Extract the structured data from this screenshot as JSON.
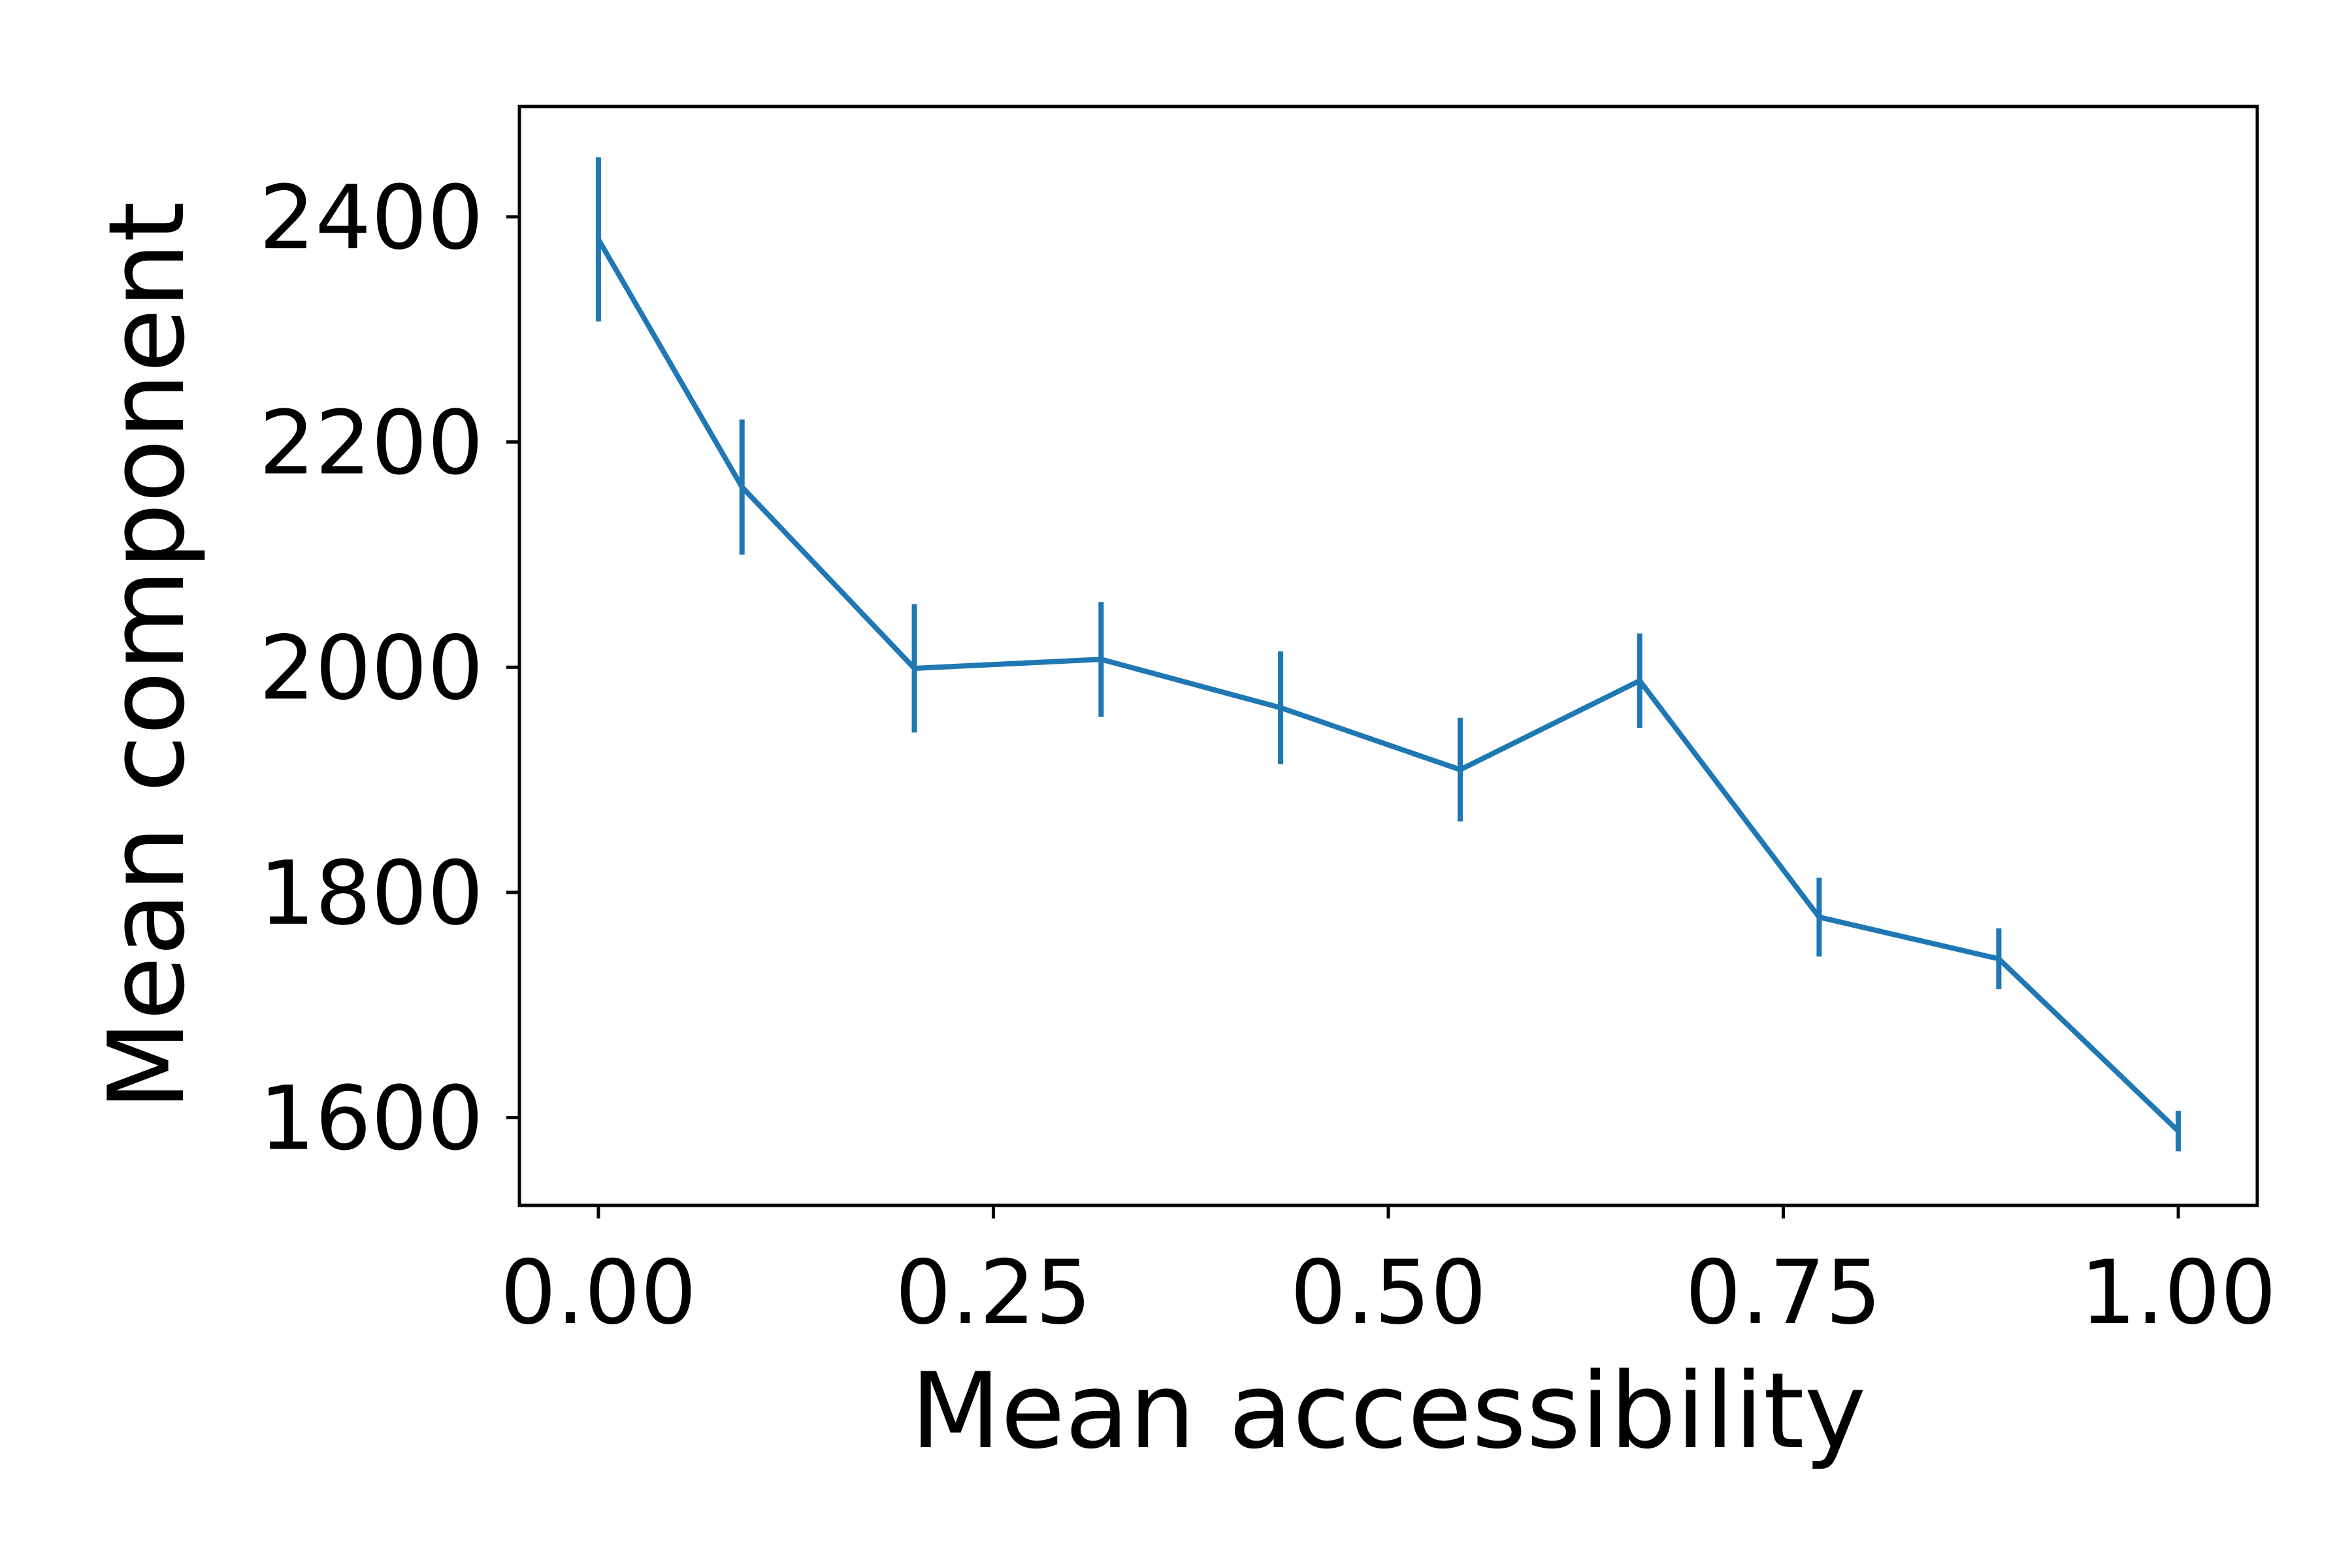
{
  "chart_data": {
    "type": "line",
    "title": "",
    "xlabel": "Mean accessibility",
    "ylabel": "Mean component",
    "xlim": [
      -0.05,
      1.05
    ],
    "ylim": [
      1522,
      2498
    ],
    "xticks": [
      0.0,
      0.25,
      0.5,
      0.75,
      1.0
    ],
    "xtick_labels": [
      "0.00",
      "0.25",
      "0.50",
      "0.75",
      "1.00"
    ],
    "yticks": [
      1600,
      1800,
      2000,
      2200,
      2400
    ],
    "ytick_labels": [
      "1600",
      "1800",
      "2000",
      "2200",
      "2400"
    ],
    "grid": false,
    "legend": "none",
    "series": [
      {
        "color": "#1f77b4",
        "points": [
          {
            "x": 0.0,
            "y": 2380,
            "err": 73
          },
          {
            "x": 0.0909,
            "y": 2160,
            "err": 60
          },
          {
            "x": 0.2,
            "y": 1999,
            "err": 57
          },
          {
            "x": 0.3182,
            "y": 2007,
            "err": 51
          },
          {
            "x": 0.4318,
            "y": 1964,
            "err": 50
          },
          {
            "x": 0.5455,
            "y": 1909,
            "err": 46
          },
          {
            "x": 0.6591,
            "y": 1988,
            "err": 42
          },
          {
            "x": 0.7727,
            "y": 1778,
            "err": 35
          },
          {
            "x": 0.8864,
            "y": 1741,
            "err": 27
          },
          {
            "x": 1.0,
            "y": 1588,
            "err": 18
          }
        ]
      }
    ]
  }
}
